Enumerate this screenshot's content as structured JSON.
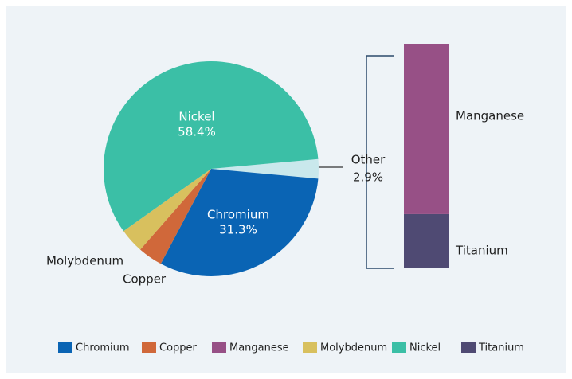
{
  "chart_data": {
    "type": "pie",
    "categories": [
      "Other",
      "Chromium",
      "Copper",
      "Molybdenum",
      "Nickel"
    ],
    "values": [
      2.9,
      31.3,
      3.7,
      3.7,
      58.4
    ],
    "value_labels": [
      "2.9%",
      "31.3%",
      null,
      null,
      "58.4%"
    ],
    "colors": [
      "#c9e8ec",
      "#0a64b4",
      "#d0683a",
      "#d8c05e",
      "#3bbfa6"
    ],
    "breakdown": {
      "categories": [
        "Manganese",
        "Titanium"
      ],
      "values": [
        2.2,
        0.7
      ],
      "colors": [
        "#975086",
        "#4f4a73"
      ]
    },
    "legend": [
      {
        "name": "Chromium",
        "color": "#0a64b4"
      },
      {
        "name": "Copper",
        "color": "#d0683a"
      },
      {
        "name": "Manganese",
        "color": "#975086"
      },
      {
        "name": "Molybdenum",
        "color": "#d8c05e"
      },
      {
        "name": "Nickel",
        "color": "#3bbfa6"
      },
      {
        "name": "Titanium",
        "color": "#4f4a73"
      }
    ]
  }
}
